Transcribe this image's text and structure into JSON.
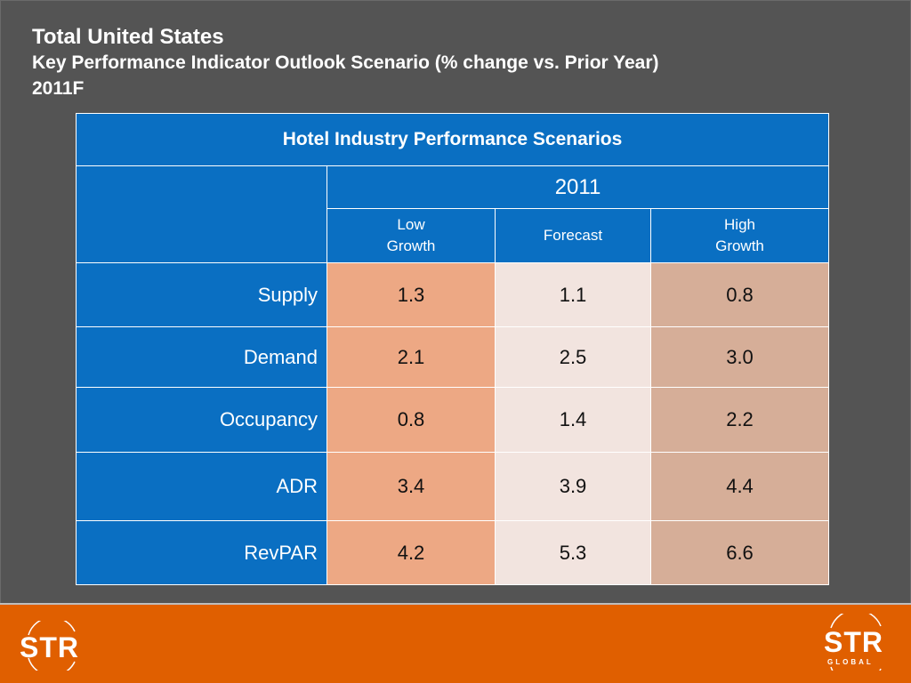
{
  "title": {
    "line1": "Total United States",
    "line2": "Key Performance Indicator Outlook Scenario (% change vs. Prior Year)",
    "line3": "2011F"
  },
  "table": {
    "header": "Hotel Industry Performance Scenarios",
    "year": "2011",
    "columns": [
      {
        "line1": "Low",
        "line2": "Growth"
      },
      {
        "line1": "Forecast",
        "line2": ""
      },
      {
        "line1": "High",
        "line2": "Growth"
      }
    ],
    "rows": [
      {
        "label": "Supply",
        "values": [
          "1.3",
          "1.1",
          "0.8"
        ]
      },
      {
        "label": "Demand",
        "values": [
          "2.1",
          "2.5",
          "3.0"
        ]
      },
      {
        "label": "Occupancy",
        "values": [
          "0.8",
          "1.4",
          "2.2"
        ]
      },
      {
        "label": "ADR",
        "values": [
          "3.4",
          "3.9",
          "4.4"
        ]
      },
      {
        "label": "RevPAR",
        "values": [
          "4.2",
          "5.3",
          "6.6"
        ]
      }
    ]
  },
  "footer": {
    "logo_left": "STR",
    "logo_right": "STR",
    "logo_right_sub": "GLOBAL",
    "brand_color": "#e05f00",
    "table_blue": "#0a6fc2"
  }
}
